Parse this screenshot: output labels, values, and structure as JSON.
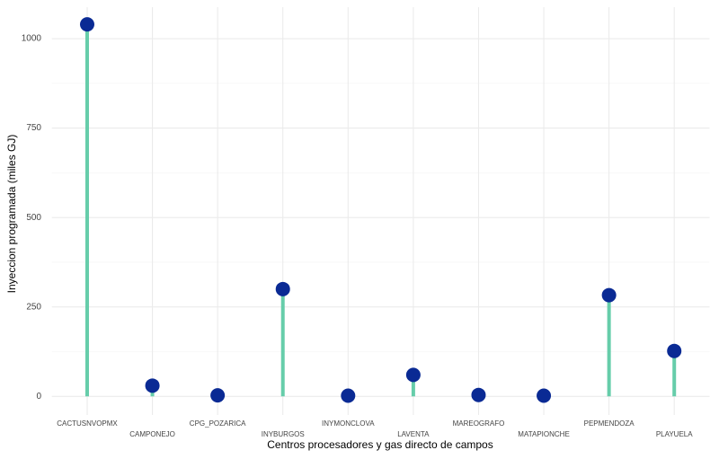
{
  "chart_data": {
    "type": "lollipop",
    "x_label": "Centros procesadores y gas directo de campos",
    "y_label": "Inyeccion programada (miles GJ)",
    "categories": [
      "CACTUSNVOPMX",
      "CAMPONEJO",
      "CPG_POZARICA",
      "INYBURGOS",
      "INYMONCLOVA",
      "LAVENTA",
      "MAREOGRAFO",
      "MATAPIONCHE",
      "PEPMENDOZA",
      "PLAYUELA"
    ],
    "values": [
      1040,
      30,
      3,
      300,
      2,
      60,
      4,
      2,
      283,
      127
    ],
    "stem_color": "#66cdaa",
    "point_color": "#0a2a94",
    "ylim": [
      -52,
      1088
    ],
    "yticks": [
      0,
      250,
      500,
      750,
      1000
    ],
    "y_minor_gridlines": [
      125,
      375,
      625,
      875
    ],
    "grid": true
  }
}
